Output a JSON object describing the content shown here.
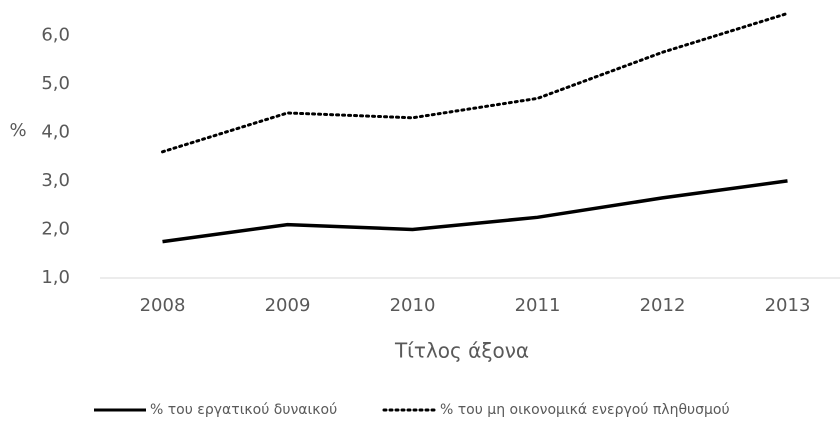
{
  "chart_data": {
    "type": "line",
    "y_label": "%",
    "x_label": "Τίτλος άξονα",
    "categories": [
      "2008",
      "2009",
      "2010",
      "2011",
      "2012",
      "2013"
    ],
    "series": [
      {
        "name": "% του εργατικού δυναικού",
        "color": "#000000",
        "style": "solid",
        "values": [
          1.75,
          2.1,
          2.0,
          2.25,
          2.65,
          3.0
        ]
      },
      {
        "name": "% του μη οικονομικά ενεργού πληθυσμού",
        "color": "#000000",
        "style": "dotted",
        "values": [
          3.6,
          4.4,
          4.3,
          4.7,
          5.65,
          6.45
        ]
      }
    ],
    "ylim": [
      1,
      6.5
    ],
    "yticks": [
      {
        "value": 1,
        "label": "1,0"
      },
      {
        "value": 2,
        "label": "2,0"
      },
      {
        "value": 3,
        "label": "3,0"
      },
      {
        "value": 4,
        "label": "4,0"
      },
      {
        "value": 5,
        "label": "5,0"
      },
      {
        "value": 6,
        "label": "6,0"
      }
    ],
    "grid": false,
    "legend": "bottom"
  }
}
